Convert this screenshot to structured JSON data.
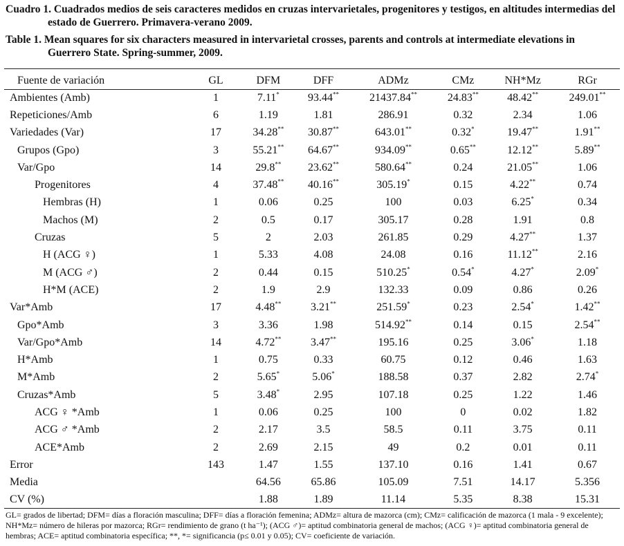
{
  "caption_es": {
    "label": "Cuadro 1.",
    "text": "Cuadrados medios de seis caracteres medidos en cruzas intervarietales, progenitores y testigos, en altitudes intermedias del estado de Guerrero. Primavera-verano 2009."
  },
  "caption_en": {
    "label": "Table 1.",
    "text": "Mean squares for six characters measured in intervarietal crosses, parents and controls at intermediate elevations in Guerrero State. Spring-summer, 2009."
  },
  "headers": [
    "Fuente de variación",
    "GL",
    "DFM",
    "DFF",
    "ADMz",
    "CMz",
    "NH*Mz",
    "RGr"
  ],
  "rows": [
    {
      "indent": 0,
      "cells": [
        [
          "Ambientes (Amb)",
          ""
        ],
        [
          "1",
          ""
        ],
        [
          "7.11",
          "*"
        ],
        [
          "93.44",
          "**"
        ],
        [
          "21437.84",
          "**"
        ],
        [
          "24.83",
          "**"
        ],
        [
          "48.42",
          "**"
        ],
        [
          "249.01",
          "**"
        ]
      ]
    },
    {
      "indent": 0,
      "cells": [
        [
          "Repeticiones/Amb",
          ""
        ],
        [
          "6",
          ""
        ],
        [
          "1.19",
          ""
        ],
        [
          "1.81",
          ""
        ],
        [
          "286.91",
          ""
        ],
        [
          "0.32",
          ""
        ],
        [
          "2.34",
          ""
        ],
        [
          "1.06",
          ""
        ]
      ]
    },
    {
      "indent": 0,
      "cells": [
        [
          "Variedades (Var)",
          ""
        ],
        [
          "17",
          ""
        ],
        [
          "34.28",
          "**"
        ],
        [
          "30.87",
          "**"
        ],
        [
          "643.01",
          "**"
        ],
        [
          "0.32",
          "*"
        ],
        [
          "19.47",
          "**"
        ],
        [
          "1.91",
          "**"
        ]
      ]
    },
    {
      "indent": 1,
      "cells": [
        [
          "Grupos (Gpo)",
          ""
        ],
        [
          "3",
          ""
        ],
        [
          "55.21",
          "**"
        ],
        [
          "64.67",
          "**"
        ],
        [
          "934.09",
          "**"
        ],
        [
          "0.65",
          "**"
        ],
        [
          "12.12",
          "**"
        ],
        [
          "5.89",
          "**"
        ]
      ]
    },
    {
      "indent": 1,
      "cells": [
        [
          "Var/Gpo",
          ""
        ],
        [
          "14",
          ""
        ],
        [
          "29.8",
          "**"
        ],
        [
          "23.62",
          "**"
        ],
        [
          "580.64",
          "**"
        ],
        [
          "0.24",
          ""
        ],
        [
          "21.05",
          "**"
        ],
        [
          "1.06",
          ""
        ]
      ]
    },
    {
      "indent": 2,
      "cells": [
        [
          "Progenitores",
          ""
        ],
        [
          "4",
          ""
        ],
        [
          "37.48",
          "**"
        ],
        [
          "40.16",
          "**"
        ],
        [
          "305.19",
          "*"
        ],
        [
          "0.15",
          ""
        ],
        [
          "4.22",
          "**"
        ],
        [
          "0.74",
          ""
        ]
      ]
    },
    {
      "indent": 3,
      "cells": [
        [
          "Hembras (H)",
          ""
        ],
        [
          "1",
          ""
        ],
        [
          "0.06",
          ""
        ],
        [
          "0.25",
          ""
        ],
        [
          "100",
          ""
        ],
        [
          "0.03",
          ""
        ],
        [
          "6.25",
          "*"
        ],
        [
          "0.34",
          ""
        ]
      ]
    },
    {
      "indent": 3,
      "cells": [
        [
          "Machos (M)",
          ""
        ],
        [
          "2",
          ""
        ],
        [
          "0.5",
          ""
        ],
        [
          "0.17",
          ""
        ],
        [
          "305.17",
          ""
        ],
        [
          "0.28",
          ""
        ],
        [
          "1.91",
          ""
        ],
        [
          "0.8",
          ""
        ]
      ]
    },
    {
      "indent": 2,
      "cells": [
        [
          "Cruzas",
          ""
        ],
        [
          "5",
          ""
        ],
        [
          "2",
          ""
        ],
        [
          "2.03",
          ""
        ],
        [
          "261.85",
          ""
        ],
        [
          "0.29",
          ""
        ],
        [
          "4.27",
          "**"
        ],
        [
          "1.37",
          ""
        ]
      ]
    },
    {
      "indent": 3,
      "cells": [
        [
          "H (ACG ♀)",
          ""
        ],
        [
          "1",
          ""
        ],
        [
          "5.33",
          ""
        ],
        [
          "4.08",
          ""
        ],
        [
          "24.08",
          ""
        ],
        [
          "0.16",
          ""
        ],
        [
          "11.12",
          "**"
        ],
        [
          "2.16",
          ""
        ]
      ]
    },
    {
      "indent": 3,
      "cells": [
        [
          "M (ACG ♂)",
          ""
        ],
        [
          "2",
          ""
        ],
        [
          "0.44",
          ""
        ],
        [
          "0.15",
          ""
        ],
        [
          "510.25",
          "*"
        ],
        [
          "0.54",
          "*"
        ],
        [
          "4.27",
          "*"
        ],
        [
          "2.09",
          "*"
        ]
      ]
    },
    {
      "indent": 3,
      "cells": [
        [
          "H*M (ACE)",
          ""
        ],
        [
          "2",
          ""
        ],
        [
          "1.9",
          ""
        ],
        [
          "2.9",
          ""
        ],
        [
          "132.33",
          ""
        ],
        [
          "0.09",
          ""
        ],
        [
          "0.86",
          ""
        ],
        [
          "0.26",
          ""
        ]
      ]
    },
    {
      "indent": 0,
      "cells": [
        [
          "Var*Amb",
          ""
        ],
        [
          "17",
          ""
        ],
        [
          "4.48",
          "**"
        ],
        [
          "3.21",
          "**"
        ],
        [
          "251.59",
          "*"
        ],
        [
          "0.23",
          ""
        ],
        [
          "2.54",
          "*"
        ],
        [
          "1.42",
          "**"
        ]
      ]
    },
    {
      "indent": 1,
      "cells": [
        [
          "Gpo*Amb",
          ""
        ],
        [
          "3",
          ""
        ],
        [
          "3.36",
          ""
        ],
        [
          "1.98",
          ""
        ],
        [
          "514.92",
          "**"
        ],
        [
          "0.14",
          ""
        ],
        [
          "0.15",
          ""
        ],
        [
          "2.54",
          "**"
        ]
      ]
    },
    {
      "indent": 1,
      "cells": [
        [
          "Var/Gpo*Amb",
          ""
        ],
        [
          "14",
          ""
        ],
        [
          "4.72",
          "**"
        ],
        [
          "3.47",
          "**"
        ],
        [
          "195.16",
          ""
        ],
        [
          "0.25",
          ""
        ],
        [
          "3.06",
          "*"
        ],
        [
          "1.18",
          ""
        ]
      ]
    },
    {
      "indent": 1,
      "cells": [
        [
          "H*Amb",
          ""
        ],
        [
          "1",
          ""
        ],
        [
          "0.75",
          ""
        ],
        [
          "0.33",
          ""
        ],
        [
          "60.75",
          ""
        ],
        [
          "0.12",
          ""
        ],
        [
          "0.46",
          ""
        ],
        [
          "1.63",
          ""
        ]
      ]
    },
    {
      "indent": 1,
      "cells": [
        [
          "M*Amb",
          ""
        ],
        [
          "2",
          ""
        ],
        [
          "5.65",
          "*"
        ],
        [
          "5.06",
          "*"
        ],
        [
          "188.58",
          ""
        ],
        [
          "0.37",
          ""
        ],
        [
          "2.82",
          ""
        ],
        [
          "2.74",
          "*"
        ]
      ]
    },
    {
      "indent": 1,
      "cells": [
        [
          "Cruzas*Amb",
          ""
        ],
        [
          "5",
          ""
        ],
        [
          "3.48",
          "*"
        ],
        [
          "2.95",
          ""
        ],
        [
          "107.18",
          ""
        ],
        [
          "0.25",
          ""
        ],
        [
          "1.22",
          ""
        ],
        [
          "1.46",
          ""
        ]
      ]
    },
    {
      "indent": 2,
      "cells": [
        [
          "ACG ♀ *Amb",
          ""
        ],
        [
          "1",
          ""
        ],
        [
          "0.06",
          ""
        ],
        [
          "0.25",
          ""
        ],
        [
          "100",
          ""
        ],
        [
          "0",
          ""
        ],
        [
          "0.02",
          ""
        ],
        [
          "1.82",
          ""
        ]
      ]
    },
    {
      "indent": 2,
      "cells": [
        [
          "ACG ♂ *Amb",
          ""
        ],
        [
          "2",
          ""
        ],
        [
          "2.17",
          ""
        ],
        [
          "3.5",
          ""
        ],
        [
          "58.5",
          ""
        ],
        [
          "0.11",
          ""
        ],
        [
          "3.75",
          ""
        ],
        [
          "0.11",
          ""
        ]
      ]
    },
    {
      "indent": 2,
      "cells": [
        [
          "ACE*Amb",
          ""
        ],
        [
          "2",
          ""
        ],
        [
          "2.69",
          ""
        ],
        [
          "2.15",
          ""
        ],
        [
          "49",
          ""
        ],
        [
          "0.2",
          ""
        ],
        [
          "0.01",
          ""
        ],
        [
          "0.11",
          ""
        ]
      ]
    },
    {
      "indent": 0,
      "cells": [
        [
          "Error",
          ""
        ],
        [
          "143",
          ""
        ],
        [
          "1.47",
          ""
        ],
        [
          "1.55",
          ""
        ],
        [
          "137.10",
          ""
        ],
        [
          "0.16",
          ""
        ],
        [
          "1.41",
          ""
        ],
        [
          "0.67",
          ""
        ]
      ]
    },
    {
      "indent": 0,
      "cells": [
        [
          "Media",
          ""
        ],
        [
          "",
          ""
        ],
        [
          "64.56",
          ""
        ],
        [
          "65.86",
          ""
        ],
        [
          "105.09",
          ""
        ],
        [
          "7.51",
          ""
        ],
        [
          "14.17",
          ""
        ],
        [
          "5.356",
          ""
        ]
      ]
    },
    {
      "indent": 0,
      "cells": [
        [
          "CV (%)",
          ""
        ],
        [
          "",
          ""
        ],
        [
          "1.88",
          ""
        ],
        [
          "1.89",
          ""
        ],
        [
          "11.14",
          ""
        ],
        [
          "5.35",
          ""
        ],
        [
          "8.38",
          ""
        ],
        [
          "15.31",
          ""
        ]
      ]
    }
  ],
  "footnote": "GL= grados de libertad; DFM= días a floración masculina; DFF= días a floración femenina; ADMz= altura de mazorca (cm); CMz= calificación de mazorca (1 mala - 9 excelente); NH*Mz= número de hileras por mazorca; RGr= rendimiento de grano (t ha⁻¹); (ACG ♂)= aptitud combinatoria general de machos; (ACG ♀)= aptitud combinatoria general de hembras; ACE= aptitud combinatoria específica; **, *= significancia (p≤ 0.01 y 0.05); CV= coeficiente de variación."
}
